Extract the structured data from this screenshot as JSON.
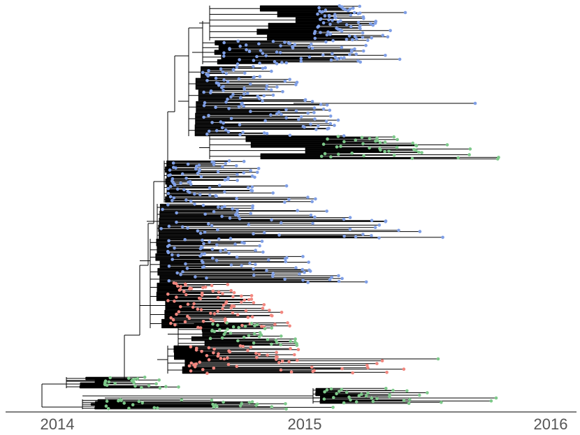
{
  "axis": {
    "ticks": [
      {
        "label": "2014",
        "value": 2014
      },
      {
        "label": "2015",
        "value": 2015
      },
      {
        "label": "2016",
        "value": 2016
      }
    ],
    "range": [
      2013.86,
      2016.1
    ]
  },
  "colors": {
    "branch": "#000000",
    "axis_line": "#333333",
    "tip_blue": "#7f9fe6",
    "tip_green": "#7dc98a",
    "tip_red": "#f2877f"
  },
  "chart_data": {
    "type": "phylogenetic-tree",
    "x_axis": "time (year)",
    "root_date": 2014.1,
    "clades": [
      {
        "name": "",
        "color": "tip_blue",
        "span": [
          2014.85,
          2015.25
        ],
        "tips": 90
      },
      {
        "name": "",
        "color": "tip_blue",
        "span": [
          2014.8,
          2015.55
        ],
        "tips": 70
      },
      {
        "name": "",
        "color": "tip_blue",
        "span": [
          2014.6,
          2015.2
        ],
        "tips": 80
      },
      {
        "name": "",
        "color": "tip_green",
        "span": [
          2015.1,
          2015.8
        ],
        "tips": 40
      },
      {
        "name": "",
        "color": "tip_blue",
        "span": [
          2014.5,
          2015.05
        ],
        "tips": 60
      },
      {
        "name": "",
        "color": "tip_blue",
        "span": [
          2014.6,
          2015.65
        ],
        "tips": 50
      },
      {
        "name": "",
        "color": "tip_blue",
        "span": [
          2014.7,
          2015.25
        ],
        "tips": 60
      },
      {
        "name": "",
        "color": "tip_red",
        "span": [
          2014.6,
          2015.0
        ],
        "tips": 70
      },
      {
        "name": "",
        "color": "tip_green",
        "span": [
          2014.6,
          2015.05
        ],
        "tips": 30
      },
      {
        "name": "",
        "color": "tip_red",
        "span": [
          2014.6,
          2015.1
        ],
        "tips": 50
      },
      {
        "name": "",
        "color": "tip_green",
        "span": [
          2014.2,
          2014.55
        ],
        "tips": 20
      },
      {
        "name": "",
        "color": "tip_green",
        "span": [
          2015.0,
          2015.5
        ],
        "tips": 25
      },
      {
        "name": "",
        "color": "tip_green",
        "span": [
          2014.2,
          2014.8
        ],
        "tips": 25
      }
    ]
  }
}
